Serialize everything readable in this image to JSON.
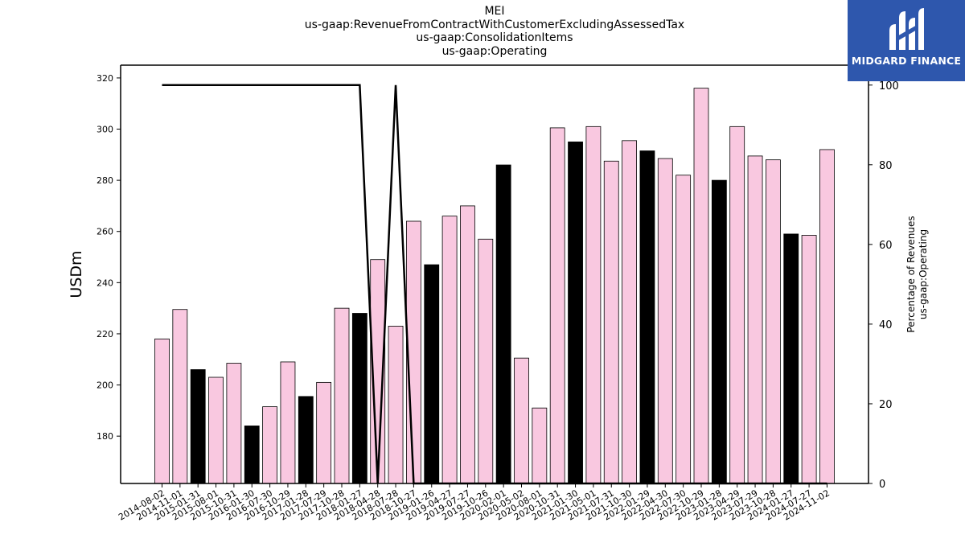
{
  "title_lines": [
    "MEI",
    "us-gaap:RevenueFromContractWithCustomerExcludingAssessedTax",
    "us-gaap:ConsolidationItems",
    "us-gaap:Operating"
  ],
  "logo": {
    "text": "MIDGARD FINANCE",
    "background": "#2e57ad"
  },
  "colors": {
    "bar_default": "#f9c8e0",
    "bar_highlight": "#000000",
    "line": "#000000"
  },
  "chart_data": {
    "type": "bar",
    "categories": [
      "2014-08-02",
      "2014-11-01",
      "2015-01-31",
      "2015-08-01",
      "2015-10-31",
      "2016-01-30",
      "2016-07-30",
      "2016-10-29",
      "2017-01-28",
      "2017-07-29",
      "2017-10-28",
      "2018-01-27",
      "2018-04-28",
      "2018-07-28",
      "2018-10-27",
      "2019-01-26",
      "2019-04-27",
      "2019-07-27",
      "2019-10-26",
      "2020-02-01",
      "2020-05-02",
      "2020-08-01",
      "2020-10-31",
      "2021-01-30",
      "2021-05-01",
      "2021-07-31",
      "2021-10-30",
      "2022-01-29",
      "2022-04-30",
      "2022-07-30",
      "2022-10-29",
      "2023-01-28",
      "2023-04-29",
      "2023-07-29",
      "2023-10-28",
      "2024-01-27",
      "2024-07-27",
      "2024-11-02"
    ],
    "values": [
      218,
      229.5,
      206,
      203,
      208.5,
      184,
      191.5,
      209,
      195.5,
      201,
      230,
      228,
      249,
      223,
      264,
      247,
      266,
      270,
      257,
      286,
      210.5,
      191,
      300.5,
      295,
      301,
      287.5,
      295.5,
      291.5,
      288.5,
      282,
      316,
      280,
      301,
      289.5,
      288,
      259,
      258.5,
      292
    ],
    "highlight": [
      false,
      false,
      true,
      false,
      false,
      true,
      false,
      false,
      true,
      false,
      false,
      true,
      false,
      false,
      false,
      true,
      false,
      false,
      false,
      true,
      false,
      false,
      false,
      true,
      false,
      false,
      false,
      true,
      false,
      false,
      false,
      true,
      false,
      false,
      false,
      true,
      false,
      false
    ],
    "line_values": [
      100,
      100,
      100,
      100,
      100,
      100,
      100,
      100,
      100,
      100,
      100,
      100,
      0,
      100,
      0,
      0,
      0,
      0,
      0,
      0,
      0,
      0,
      0,
      0,
      0,
      0,
      0,
      0,
      0,
      0,
      0,
      0,
      0,
      0,
      0,
      0,
      0,
      0
    ],
    "ylabel": "USDm",
    "y2label_lines": [
      "Percentage of Revenues",
      "us-gaap:Operating"
    ],
    "ylim": [
      161.5,
      325
    ],
    "y2lim": [
      0,
      105
    ],
    "yticks": [
      180,
      200,
      220,
      240,
      260,
      280,
      300,
      320
    ],
    "y2ticks": [
      0,
      20,
      40,
      60,
      80,
      100
    ],
    "grid": false,
    "legend": "none"
  }
}
